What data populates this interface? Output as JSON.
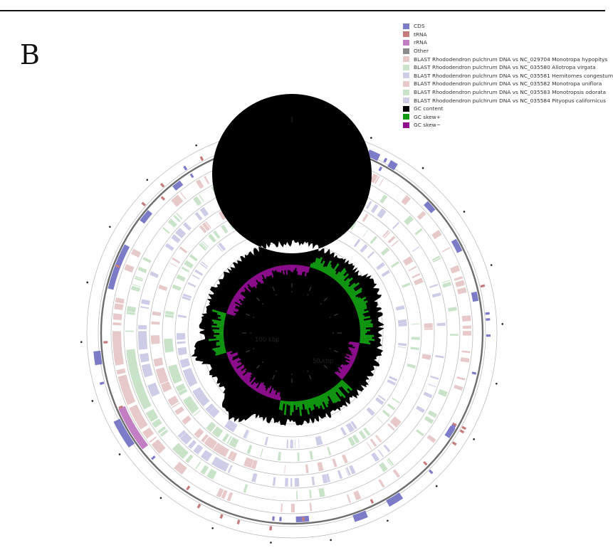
{
  "figure": {
    "panel_letter": "B",
    "scale_labels": [
      "100 kbp",
      "50 kbp"
    ]
  },
  "legend": [
    {
      "label": "CDS",
      "color": "#7b7bc8"
    },
    {
      "label": "tRNA",
      "color": "#c47c7c"
    },
    {
      "label": "rRNA",
      "color": "#c27ec2"
    },
    {
      "label": "Other",
      "color": "#8c8c8c"
    },
    {
      "label": "BLAST Rhododendron pulchrum DNA vs NC_029704 Monotropa hypopitys",
      "color": "#e8c9c9"
    },
    {
      "label": "BLAST Rhododendron pulchrum DNA vs NC_035580 Allotropa virgata",
      "color": "#c9e3c9"
    },
    {
      "label": "BLAST Rhododendron pulchrum DNA vs NC_035581 Hemitomes congestum",
      "color": "#cdcde8"
    },
    {
      "label": "BLAST Rhododendron pulchrum DNA vs NC_035582 Monotropa uniflora",
      "color": "#e8c9c9"
    },
    {
      "label": "BLAST Rhododendron pulchrum DNA vs NC_035583 Monotropsis odorata",
      "color": "#c9e3c9"
    },
    {
      "label": "BLAST Rhododendron pulchrum DNA vs NC_035584 Pityopus californicus",
      "color": "#cdcde8"
    },
    {
      "label": "GC content",
      "color": "#000000"
    },
    {
      "label": "GC skew+",
      "color": "#119911"
    },
    {
      "label": "GC skew−",
      "color": "#8f0d8f"
    }
  ]
}
